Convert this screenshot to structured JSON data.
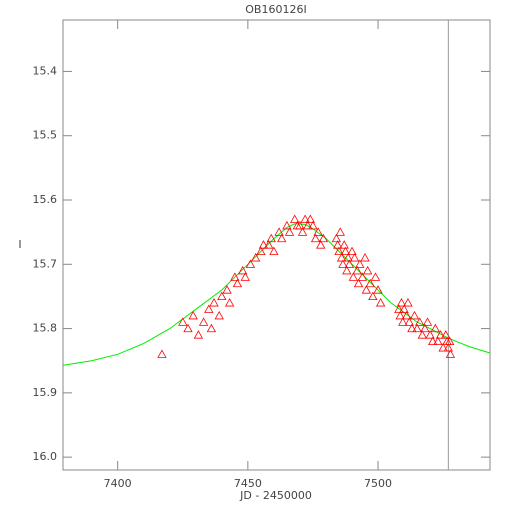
{
  "chart_data": {
    "type": "scatter",
    "title": "OB160126I",
    "x_label": "JD - 2450000",
    "y_label": "I",
    "xlim": [
      7379,
      7543
    ],
    "ylim": [
      16.02,
      15.32
    ],
    "y_inverted": true,
    "xticks": [
      7400,
      7450,
      7500
    ],
    "yticks": [
      15.4,
      15.5,
      15.6,
      15.7,
      15.8,
      15.9,
      {
        "value": 16,
        "label": "16.0"
      }
    ],
    "series": [
      {
        "color": "#ff0000",
        "x": [
          7417,
          7425,
          7427,
          7429,
          7431,
          7433,
          7435,
          7436,
          7437,
          7439,
          7440,
          7442,
          7443,
          7445,
          7446,
          7448,
          7449,
          7451,
          7453,
          7455,
          7456,
          7458,
          7459,
          7460,
          7462,
          7463,
          7465,
          7466,
          7468,
          7469,
          7470,
          7471,
          7472,
          7473,
          7474,
          7475,
          7476,
          7477,
          7478,
          7479,
          7484,
          7484.5,
          7485,
          7485.5,
          7486,
          7486.5,
          7487,
          7487.5,
          7488,
          7488.5,
          7489,
          7490,
          7490.5,
          7491,
          7492,
          7492.5,
          7493,
          7494,
          7495,
          7495.5,
          7496,
          7497,
          7498,
          7499,
          7500,
          7501,
          7508,
          7508.5,
          7509,
          7509.5,
          7510,
          7511,
          7511.5,
          7512,
          7513,
          7514,
          7515,
          7516,
          7517,
          7518,
          7519,
          7520,
          7521,
          7522,
          7523,
          7524,
          7525,
          7526,
          7526.5,
          7527,
          7527.5,
          7527.8
        ],
        "values": [
          15.84,
          15.79,
          15.8,
          15.78,
          15.81,
          15.79,
          15.77,
          15.8,
          15.76,
          15.78,
          15.75,
          15.74,
          15.76,
          15.72,
          15.73,
          15.71,
          15.72,
          15.7,
          15.69,
          15.68,
          15.67,
          15.67,
          15.66,
          15.68,
          15.65,
          15.66,
          15.64,
          15.65,
          15.63,
          15.64,
          15.64,
          15.65,
          15.63,
          15.64,
          15.63,
          15.64,
          15.66,
          15.65,
          15.67,
          15.66,
          15.66,
          15.67,
          15.68,
          15.65,
          15.69,
          15.7,
          15.67,
          15.68,
          15.71,
          15.69,
          15.7,
          15.68,
          15.72,
          15.69,
          15.71,
          15.73,
          15.7,
          15.72,
          15.69,
          15.74,
          15.71,
          15.73,
          15.75,
          15.72,
          15.74,
          15.76,
          15.77,
          15.78,
          15.76,
          15.79,
          15.77,
          15.78,
          15.76,
          15.79,
          15.8,
          15.78,
          15.8,
          15.79,
          15.81,
          15.8,
          15.79,
          15.81,
          15.82,
          15.8,
          15.82,
          15.81,
          15.83,
          15.81,
          15.82,
          15.83,
          15.82,
          15.84
        ]
      }
    ],
    "model": {
      "color": "#00ee00",
      "x": [
        7379,
        7390,
        7400,
        7410,
        7420,
        7430,
        7440,
        7450,
        7460,
        7465,
        7468,
        7472,
        7475,
        7480,
        7485,
        7490,
        7495,
        7500,
        7505,
        7510,
        7515,
        7520,
        7527,
        7535,
        7543
      ],
      "values": [
        15.857,
        15.85,
        15.84,
        15.823,
        15.8,
        15.77,
        15.74,
        15.7,
        15.66,
        15.643,
        15.637,
        15.638,
        15.645,
        15.66,
        15.68,
        15.7,
        15.72,
        15.74,
        15.76,
        15.775,
        15.79,
        15.8,
        15.815,
        15.828,
        15.838
      ]
    },
    "vline": {
      "x": 7527,
      "color": "#999999"
    }
  }
}
